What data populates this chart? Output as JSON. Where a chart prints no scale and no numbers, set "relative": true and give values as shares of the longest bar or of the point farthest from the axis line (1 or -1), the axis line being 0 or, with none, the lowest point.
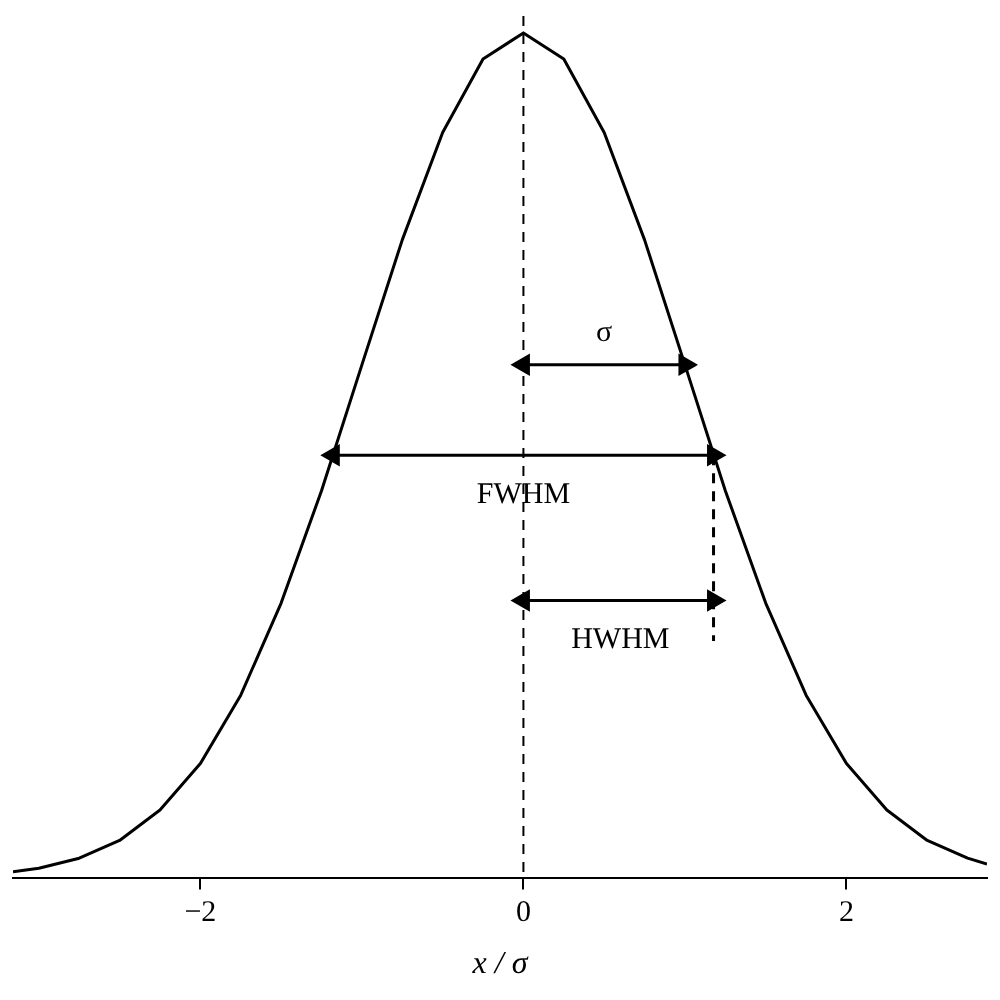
{
  "chart_data": {
    "type": "line",
    "xlabel": "x / σ",
    "relative": true,
    "xlim": [
      -3.16,
      2.87
    ],
    "xticks": [
      {
        "value": -2,
        "label": "−2"
      },
      0,
      2
    ],
    "grid": false,
    "legend": false,
    "marker": "none",
    "series": [
      {
        "color": "#000000",
        "x": [
          -3.16,
          -3,
          -2.75,
          -2.5,
          -2.25,
          -2,
          -1.75,
          -1.5,
          -1.25,
          -1,
          -0.75,
          -0.5,
          -0.25,
          0,
          0.25,
          0.5,
          0.75,
          1,
          1.25,
          1.5,
          1.75,
          2,
          2.25,
          2.5,
          2.75,
          2.87
        ],
        "values": [
          0.007,
          0.011,
          0.023,
          0.044,
          0.08,
          0.135,
          0.216,
          0.325,
          0.458,
          0.607,
          0.755,
          0.882,
          0.969,
          1,
          0.969,
          0.882,
          0.755,
          0.607,
          0.458,
          0.325,
          0.216,
          0.135,
          0.08,
          0.044,
          0.023,
          0.016
        ]
      },
      {
        "color": "#000000",
        "x": [
          0,
          1
        ],
        "values": [
          0.607,
          0.607
        ],
        "marker": "triangle"
      },
      {
        "color": "#000000",
        "x": [
          -1.177,
          1.177
        ],
        "values": [
          0.5,
          0.5
        ],
        "marker": "triangle"
      },
      {
        "color": "#000000",
        "x": [
          0,
          1.177
        ],
        "values": [
          0.328,
          0.328
        ],
        "marker": "triangle"
      },
      {
        "color": "#000000",
        "x": [
          1.177,
          1.177
        ],
        "values": [
          0.5,
          0.28
        ],
        "line_style": "dashed"
      }
    ],
    "ref_lines": [
      {
        "axis": "x",
        "value": 0,
        "line_style": "dashed",
        "color": "#000000"
      }
    ],
    "annotations": [
      {
        "text": "σ",
        "x": 0.5,
        "y": 0.607
      },
      {
        "text": "FWHM",
        "x": 0,
        "y": 0.5
      },
      {
        "text": "HWHM",
        "x": 0.6,
        "y": 0.328
      }
    ]
  }
}
